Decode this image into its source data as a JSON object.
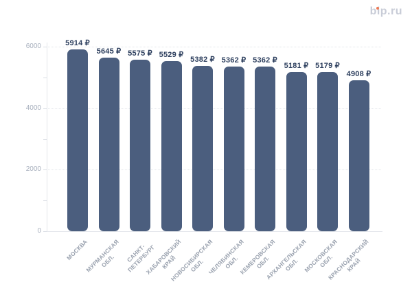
{
  "logo": {
    "text": "bip.ru",
    "text_color": "#c8ccd7",
    "dot_color": "#ee7a55"
  },
  "chart_data": {
    "type": "bar",
    "title": "",
    "xlabel": "",
    "ylabel": "",
    "unit": "₽",
    "categories": [
      "МОСКВА",
      "МУРМАНСКАЯ\nОБЛ.",
      "САНКТ-\nПЕТЕРБУРГ",
      "ХАБАРОВСКИЙ\nКРАЙ",
      "НОВОСИБИРСКАЯ\nОБЛ.",
      "ЧЕЛЯБИНСКАЯ\nОБЛ.",
      "КЕМЕРОВСКАЯ\nОБЛ.",
      "АРХАНГЕЛЬСКАЯ\nОБЛ.",
      "МОСКОВСКАЯ\nОБЛ.",
      "КРАСНОДАРСКИЙ\nКРАЙ"
    ],
    "values": [
      5914,
      5645,
      5575,
      5529,
      5382,
      5362,
      5362,
      5181,
      5179,
      4908
    ],
    "ylim": [
      0,
      6000
    ],
    "yticks_labeled": [
      0,
      2000,
      4000,
      6000
    ],
    "yticks_all": [
      0,
      1000,
      2000,
      3000,
      4000,
      5000,
      6000
    ],
    "grid": "horizontal-dotted",
    "legend": "none",
    "colors": {
      "bar": "#4b5e7e",
      "value_label": "#2d3f5e",
      "y_tick_label": "#a7afbd",
      "x_tick_label": "#9aa2af",
      "gridline": "#e2e5ea",
      "axis_line": "#e2e5ea",
      "tick_mark": "#d9dde3"
    }
  }
}
